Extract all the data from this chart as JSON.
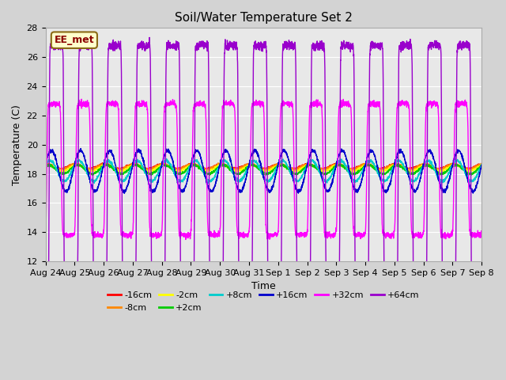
{
  "title": "Soil/Water Temperature Set 2",
  "xlabel": "Time",
  "ylabel": "Temperature (C)",
  "ylim": [
    12,
    28
  ],
  "xlim": [
    0,
    15
  ],
  "yticks": [
    12,
    14,
    16,
    18,
    20,
    22,
    24,
    26,
    28
  ],
  "xtick_labels": [
    "Aug 24",
    "Aug 25",
    "Aug 26",
    "Aug 27",
    "Aug 28",
    "Aug 29",
    "Aug 30",
    "Aug 31",
    "Sep 1",
    "Sep 2",
    "Sep 3",
    "Sep 4",
    "Sep 5",
    "Sep 6",
    "Sep 7",
    "Sep 8"
  ],
  "fig_bg_color": "#d3d3d3",
  "plot_bg_color": "#e8e8e8",
  "annotation_text": "EE_met",
  "annotation_bg": "#ffffcc",
  "annotation_border": "#8b6914",
  "annotation_text_color": "#8b0000",
  "series": [
    {
      "label": "-16cm",
      "color": "#ff0000"
    },
    {
      "label": "-8cm",
      "color": "#ff8800"
    },
    {
      "label": "-2cm",
      "color": "#ffff00"
    },
    {
      "label": "+2cm",
      "color": "#00cc00"
    },
    {
      "label": "+8cm",
      "color": "#00cccc"
    },
    {
      "label": "+16cm",
      "color": "#0000cc"
    },
    {
      "label": "+32cm",
      "color": "#ff00ff"
    },
    {
      "label": "+64cm",
      "color": "#9900cc"
    }
  ],
  "grid_color": "#ffffff",
  "linewidth": 1.0
}
